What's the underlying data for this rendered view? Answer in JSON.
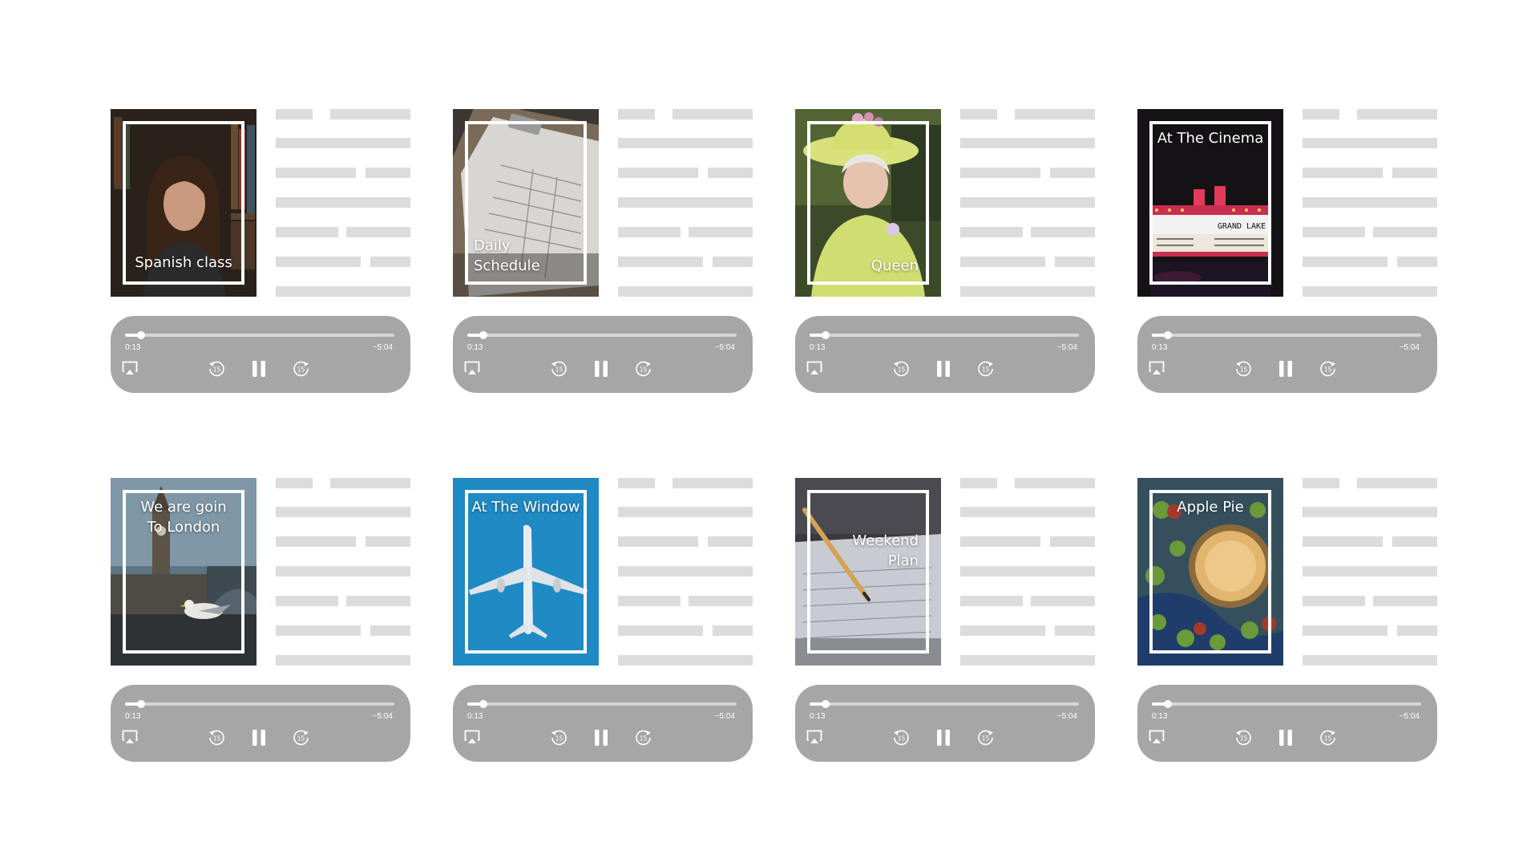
{
  "colors": {
    "player_background": "#a6a6a6",
    "text_placeholder": "#dcdcdc",
    "frame": "#ffffff"
  },
  "icons": {
    "airplay": "airplay-icon",
    "skip_back": "skip-back-15-icon",
    "pause": "pause-icon",
    "skip_forward": "skip-forward-15-icon"
  },
  "cards": [
    {
      "title": "Spanish class",
      "title_position": "bottom-center",
      "cover": "woman-in-library",
      "player": {
        "elapsed": "0:13",
        "remaining": "−5:04",
        "skip_back_seconds": "15",
        "skip_forward_seconds": "15",
        "progress": 0.06
      }
    },
    {
      "title": "Daily\nSchedule",
      "title_position": "bottom-left",
      "cover": "clipboard-daily-report",
      "player": {
        "elapsed": "0:13",
        "remaining": "−5:04",
        "skip_back_seconds": "15",
        "skip_forward_seconds": "15",
        "progress": 0.06
      }
    },
    {
      "title": "Queen",
      "title_position": "bottom-right",
      "cover": "woman-in-yellow-hat",
      "player": {
        "elapsed": "0:13",
        "remaining": "−5:04",
        "skip_back_seconds": "15",
        "skip_forward_seconds": "15",
        "progress": 0.06
      }
    },
    {
      "title": "At The Cinema",
      "title_position": "top-center",
      "cover": "theater-marquee-night",
      "marquee_text": "GRAND LAKE",
      "player": {
        "elapsed": "0:13",
        "remaining": "−5:04",
        "skip_back_seconds": "15",
        "skip_forward_seconds": "15",
        "progress": 0.06
      }
    },
    {
      "title": "We are goin\nTo London",
      "title_position": "top-center",
      "cover": "big-ben-seagull",
      "player": {
        "elapsed": "0:13",
        "remaining": "−5:04",
        "skip_back_seconds": "15",
        "skip_forward_seconds": "15",
        "progress": 0.06
      }
    },
    {
      "title": "At The Window",
      "title_position": "top-center",
      "cover": "airplane-blue-sky",
      "player": {
        "elapsed": "0:13",
        "remaining": "−5:04",
        "skip_back_seconds": "15",
        "skip_forward_seconds": "15",
        "progress": 0.06
      }
    },
    {
      "title": "Weekend\nPlan",
      "title_position": "middle-right",
      "cover": "pencil-notebook",
      "player": {
        "elapsed": "0:13",
        "remaining": "−5:04",
        "skip_back_seconds": "15",
        "skip_forward_seconds": "15",
        "progress": 0.06
      }
    },
    {
      "title": "Apple Pie",
      "title_position": "top-center",
      "cover": "apple-pie-table",
      "player": {
        "elapsed": "0:13",
        "remaining": "−5:04",
        "skip_back_seconds": "15",
        "skip_forward_seconds": "15",
        "progress": 0.06
      }
    }
  ]
}
